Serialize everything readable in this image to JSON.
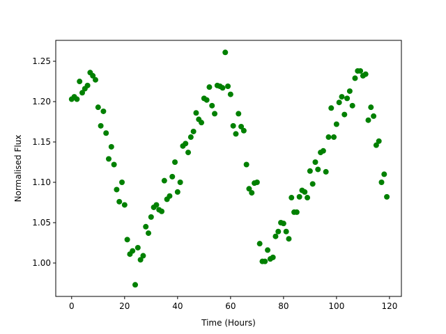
{
  "chart_data": {
    "type": "scatter",
    "xlabel": "Time (Hours)",
    "ylabel": "Normalised Flux",
    "color": "#008000",
    "x": [
      0,
      1,
      2,
      3,
      4,
      5,
      6,
      7,
      8,
      9,
      10,
      11,
      12,
      13,
      14,
      15,
      16,
      17,
      18,
      19,
      20,
      21,
      22,
      23,
      24,
      25,
      26,
      27,
      28,
      29,
      30,
      31,
      32,
      33,
      34,
      35,
      36,
      37,
      38,
      39,
      40,
      41,
      42,
      43,
      44,
      45,
      46,
      47,
      48,
      49,
      50,
      51,
      52,
      53,
      54,
      55,
      56,
      57,
      58,
      59,
      60,
      61,
      62,
      63,
      64,
      65,
      66,
      67,
      68,
      69,
      70,
      71,
      72,
      73,
      74,
      75,
      76,
      77,
      78,
      79,
      80,
      81,
      82,
      83,
      84,
      85,
      86,
      87,
      88,
      89,
      90,
      91,
      92,
      93,
      94,
      95,
      96,
      97,
      98,
      99,
      100,
      101,
      102,
      103,
      104,
      105,
      106,
      107,
      108,
      109,
      110,
      111,
      112,
      113,
      114,
      115,
      116,
      117,
      118,
      119
    ],
    "values": [
      1.203,
      1.206,
      1.203,
      1.225,
      1.211,
      1.216,
      1.22,
      1.236,
      1.232,
      1.227,
      1.193,
      1.17,
      1.188,
      1.161,
      1.129,
      1.144,
      1.122,
      1.091,
      1.076,
      1.1,
      1.072,
      1.029,
      1.011,
      1.015,
      0.973,
      1.019,
      1.004,
      1.009,
      1.045,
      1.037,
      1.057,
      1.069,
      1.072,
      1.066,
      1.064,
      1.102,
      1.079,
      1.083,
      1.107,
      1.125,
      1.088,
      1.1,
      1.145,
      1.148,
      1.137,
      1.156,
      1.163,
      1.186,
      1.178,
      1.174,
      1.204,
      1.202,
      1.218,
      1.195,
      1.185,
      1.22,
      1.219,
      1.217,
      1.261,
      1.219,
      1.209,
      1.17,
      1.16,
      1.185,
      1.169,
      1.164,
      1.122,
      1.092,
      1.087,
      1.099,
      1.1,
      1.024,
      1.002,
      1.002,
      1.016,
      1.005,
      1.007,
      1.033,
      1.039,
      1.05,
      1.049,
      1.039,
      1.03,
      1.081,
      1.063,
      1.063,
      1.082,
      1.09,
      1.088,
      1.081,
      1.114,
      1.098,
      1.125,
      1.116,
      1.137,
      1.139,
      1.113,
      1.156,
      1.192,
      1.156,
      1.172,
      1.199,
      1.206,
      1.184,
      1.204,
      1.213,
      1.195,
      1.229,
      1.238,
      1.238,
      1.232,
      1.234,
      1.177,
      1.193,
      1.182,
      1.146,
      1.151,
      1.1,
      1.11,
      1.082
    ],
    "xlim": [
      -6,
      124.5
    ],
    "ylim": [
      0.9586,
      1.2759
    ],
    "xticks": [
      0,
      20,
      40,
      60,
      80,
      100,
      120
    ],
    "yticks": [
      {
        "value": 1.0,
        "label": "1.00"
      },
      {
        "value": 1.05,
        "label": "1.05"
      },
      {
        "value": 1.1,
        "label": "1.10"
      },
      {
        "value": 1.15,
        "label": "1.15"
      },
      {
        "value": 1.2,
        "label": "1.20"
      },
      {
        "value": 1.25,
        "label": "1.25"
      }
    ]
  }
}
